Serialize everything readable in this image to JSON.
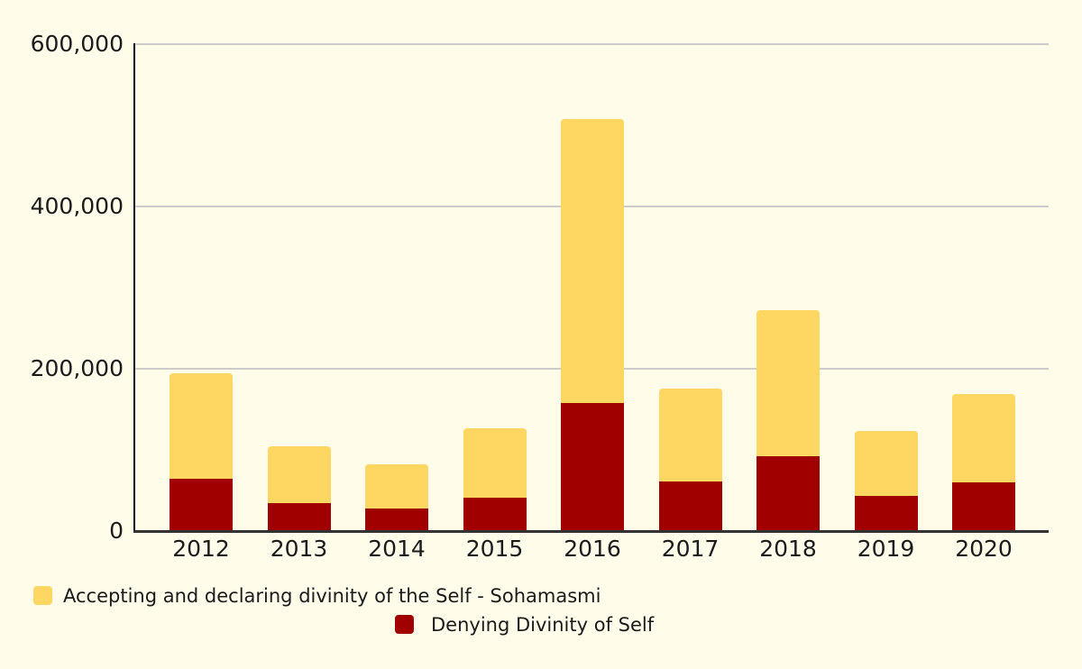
{
  "chart_data": {
    "type": "bar",
    "stacked": true,
    "title": "",
    "xlabel": "",
    "ylabel": "",
    "grid": true,
    "legend_position": "bottom",
    "categories": [
      "2012",
      "2013",
      "2014",
      "2015",
      "2016",
      "2017",
      "2018",
      "2019",
      "2020"
    ],
    "series": [
      {
        "name": "Accepting and declaring divinity of the Self - Sohamasmi",
        "color": "#FDD761",
        "values": [
          130000,
          70000,
          54000,
          86000,
          350000,
          115000,
          180000,
          80000,
          109000
        ]
      },
      {
        "name": "Denying Divinity of Self",
        "color": "#A00000",
        "values": [
          65000,
          35000,
          28000,
          41000,
          158000,
          61000,
          92000,
          43000,
          60000
        ]
      }
    ],
    "stack_bottom_series": "Denying Divinity of Self",
    "totals": [
      195000,
      105000,
      82000,
      127000,
      508000,
      176000,
      272000,
      123000,
      169000
    ],
    "ylim": [
      0,
      600000
    ],
    "yticks": [
      {
        "value": 0,
        "label": "0"
      },
      {
        "value": 200000,
        "label": "200,000"
      },
      {
        "value": 400000,
        "label": "400,000"
      },
      {
        "value": 600000,
        "label": "600,000"
      }
    ]
  },
  "legend": {
    "items": [
      {
        "label": "Accepting and declaring divinity of the Self - Sohamasmi",
        "color": "#FDD761"
      },
      {
        "label": "Denying Divinity of Self",
        "color": "#A00000"
      }
    ]
  },
  "colors": {
    "background": "#FFFCE9",
    "gridline": "#CCCCCB",
    "y_axis_line": "#000000",
    "x_axis_line": "#333333",
    "text": "#1B1B1B"
  }
}
